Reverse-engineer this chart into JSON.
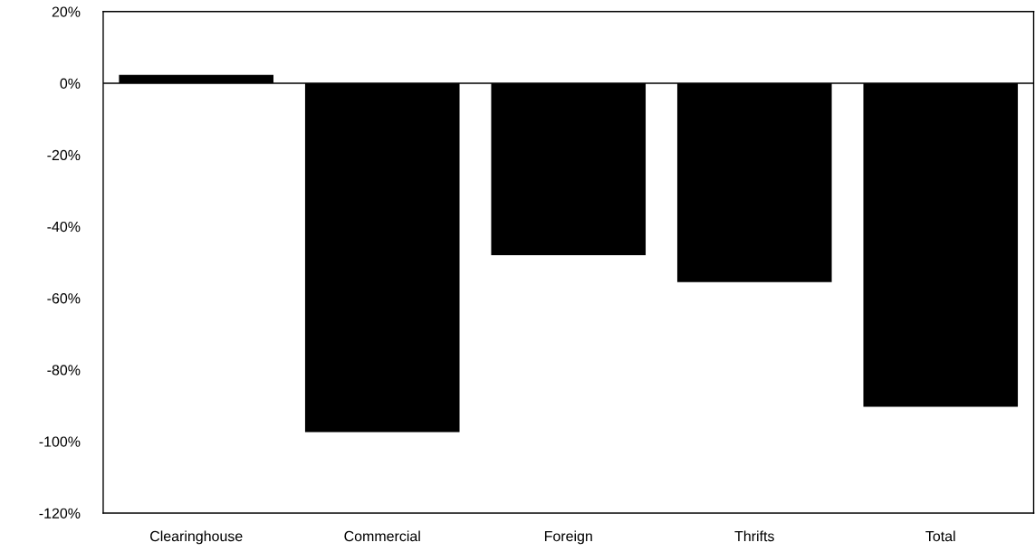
{
  "chart_data": {
    "type": "bar",
    "categories": [
      "Clearinghouse",
      "Commercial",
      "Foreign",
      "Thrifts",
      "Total"
    ],
    "values": [
      2.3,
      -97.4,
      -48,
      -55.5,
      -90.3
    ],
    "color": "#000000",
    "ylim": [
      -120,
      20
    ],
    "yticks": [
      {
        "value": 20,
        "label": "20%"
      },
      {
        "value": 0,
        "label": "0%"
      },
      {
        "value": -20,
        "label": "-20%"
      },
      {
        "value": -40,
        "label": "-40%"
      },
      {
        "value": -60,
        "label": "-60%"
      },
      {
        "value": -80,
        "label": "-80%"
      },
      {
        "value": -100,
        "label": "-100%"
      },
      {
        "value": -120,
        "label": "-120%"
      }
    ],
    "ref_lines": [
      {
        "axis": "y",
        "value": 0,
        "color": "#000000"
      }
    ],
    "grid": false,
    "legend": false
  }
}
